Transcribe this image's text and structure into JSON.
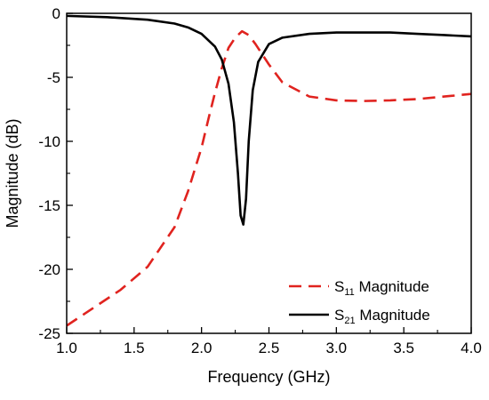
{
  "chart_data": {
    "type": "line",
    "xlabel": "Frequency (GHz)",
    "ylabel": "Magnitude (dB)",
    "xlim": [
      1.0,
      4.0
    ],
    "ylim": [
      -25,
      0
    ],
    "xticks": [
      "1.0",
      "1.5",
      "2.0",
      "2.5",
      "3.0",
      "3.5",
      "4.0"
    ],
    "yticks": [
      "0",
      "-5",
      "-10",
      "-15",
      "-20",
      "-25"
    ],
    "grid": false,
    "legend_position": "bottom-right",
    "series": [
      {
        "name_main": "S",
        "name_sub": "11",
        "name_rest": " Magnitude",
        "color": "#e0231f",
        "style": "dashed",
        "x": [
          1.0,
          1.2,
          1.4,
          1.6,
          1.8,
          1.9,
          2.0,
          2.05,
          2.1,
          2.15,
          2.2,
          2.25,
          2.3,
          2.35,
          2.4,
          2.5,
          2.6,
          2.8,
          3.0,
          3.2,
          3.4,
          3.6,
          3.8,
          4.0
        ],
        "y": [
          -24.4,
          -23.0,
          -21.6,
          -19.8,
          -16.7,
          -13.9,
          -10.5,
          -8.3,
          -6.2,
          -4.3,
          -2.7,
          -1.9,
          -1.4,
          -1.7,
          -2.4,
          -4.0,
          -5.4,
          -6.5,
          -6.8,
          -6.85,
          -6.8,
          -6.7,
          -6.5,
          -6.3
        ]
      },
      {
        "name_main": "S",
        "name_sub": "21",
        "name_rest": " Magnitude",
        "color": "#000000",
        "style": "solid",
        "x": [
          1.0,
          1.3,
          1.6,
          1.8,
          1.9,
          2.0,
          2.1,
          2.15,
          2.2,
          2.24,
          2.27,
          2.29,
          2.31,
          2.33,
          2.35,
          2.38,
          2.42,
          2.5,
          2.6,
          2.8,
          3.0,
          3.2,
          3.4,
          3.6,
          3.8,
          4.0
        ],
        "y": [
          -0.2,
          -0.3,
          -0.5,
          -0.8,
          -1.1,
          -1.6,
          -2.6,
          -3.6,
          -5.5,
          -8.5,
          -12.5,
          -15.8,
          -16.5,
          -14.5,
          -10.0,
          -6.0,
          -3.8,
          -2.4,
          -1.9,
          -1.6,
          -1.5,
          -1.5,
          -1.5,
          -1.6,
          -1.7,
          -1.8
        ]
      }
    ]
  }
}
